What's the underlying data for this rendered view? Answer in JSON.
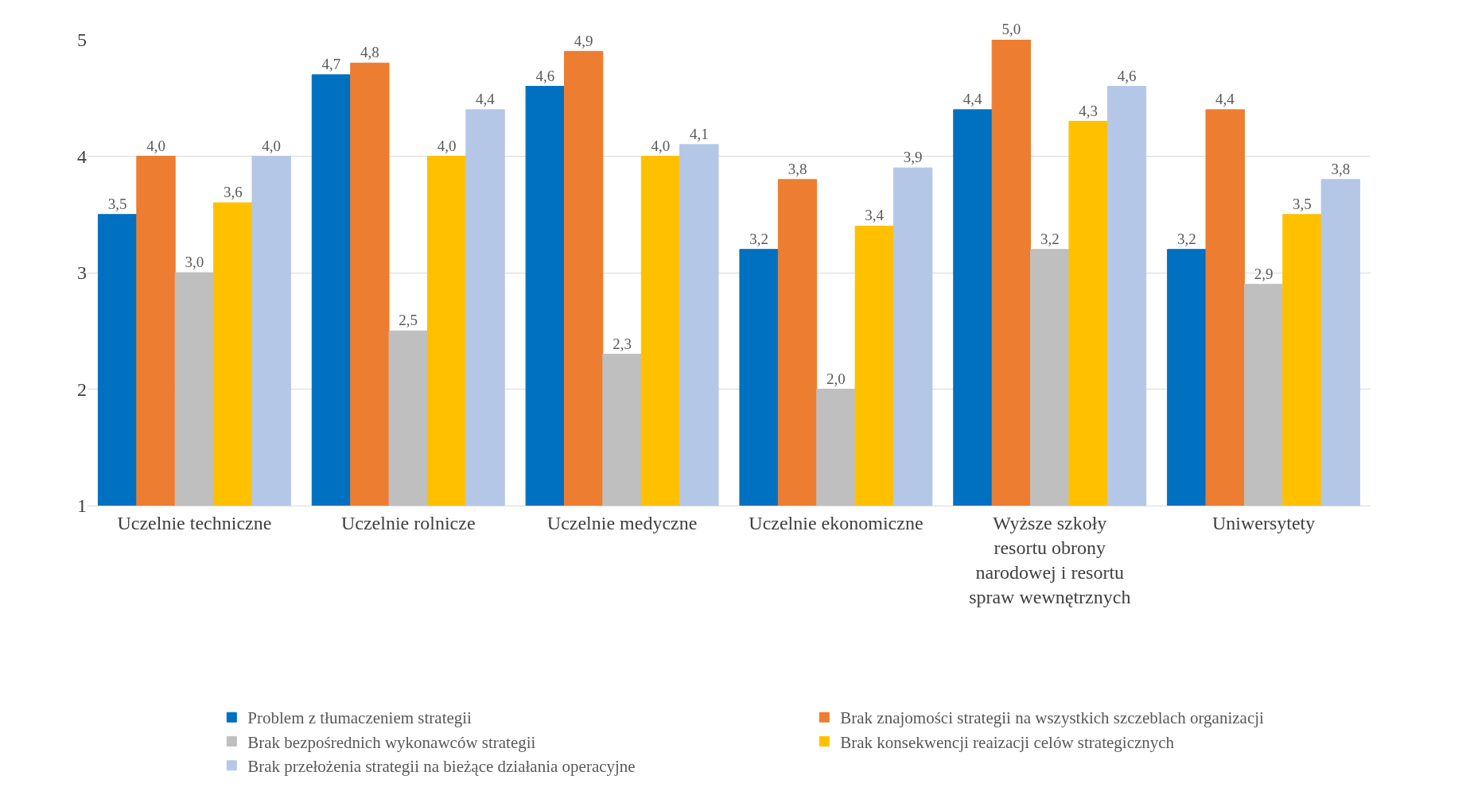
{
  "chart_data": {
    "type": "bar",
    "categories": [
      "Uczelnie techniczne",
      "Uczelnie rolnicze",
      "Uczelnie medyczne",
      "Uczelnie ekonomiczne",
      "Wyższe szkoły resortu obrony narodowej i resortu spraw wewnętrznych",
      "Uniwersytety"
    ],
    "series": [
      {
        "name": "Problem z tłumaczeniem strategii",
        "color": "#0070c0",
        "values": [
          3.5,
          4.7,
          4.6,
          3.2,
          4.4,
          3.2
        ],
        "value_labels": [
          "3,5",
          "4,7",
          "4,6",
          "3,2",
          "4,4",
          "3,2"
        ]
      },
      {
        "name": "Brak znajomości strategii na wszystkich szczeblach organizacji",
        "color": "#ed7d31",
        "values": [
          4.0,
          4.8,
          4.9,
          3.8,
          5.0,
          4.4
        ],
        "value_labels": [
          "4,0",
          "4,8",
          "4,9",
          "3,8",
          "5,0",
          "4,4"
        ]
      },
      {
        "name": "Brak bezpośrednich wykonawców strategii",
        "color": "#bfbfbf",
        "values": [
          3.0,
          2.5,
          2.3,
          2.0,
          3.2,
          2.9
        ],
        "value_labels": [
          "3,0",
          "2,5",
          "2,3",
          "2,0",
          "3,2",
          "2,9"
        ]
      },
      {
        "name": "Brak konsekwencji reaizacji celów strategicznych",
        "color": "#ffc000",
        "values": [
          3.6,
          4.0,
          4.0,
          3.4,
          4.3,
          3.5
        ],
        "value_labels": [
          "3,6",
          "4,0",
          "4,0",
          "3,4",
          "4,3",
          "3,5"
        ]
      },
      {
        "name": "Brak przełożenia strategii na bieżące działania operacyjne",
        "color": "#b4c7e7",
        "values": [
          4.0,
          4.4,
          4.1,
          3.9,
          4.6,
          3.8
        ],
        "value_labels": [
          "4,0",
          "4,4",
          "4,1",
          "3,9",
          "4,6",
          "3,8"
        ]
      }
    ],
    "ylim": [
      1,
      5
    ],
    "yticks": [
      1,
      2,
      3,
      4,
      5
    ],
    "grid": "y",
    "legend": "bottom"
  }
}
